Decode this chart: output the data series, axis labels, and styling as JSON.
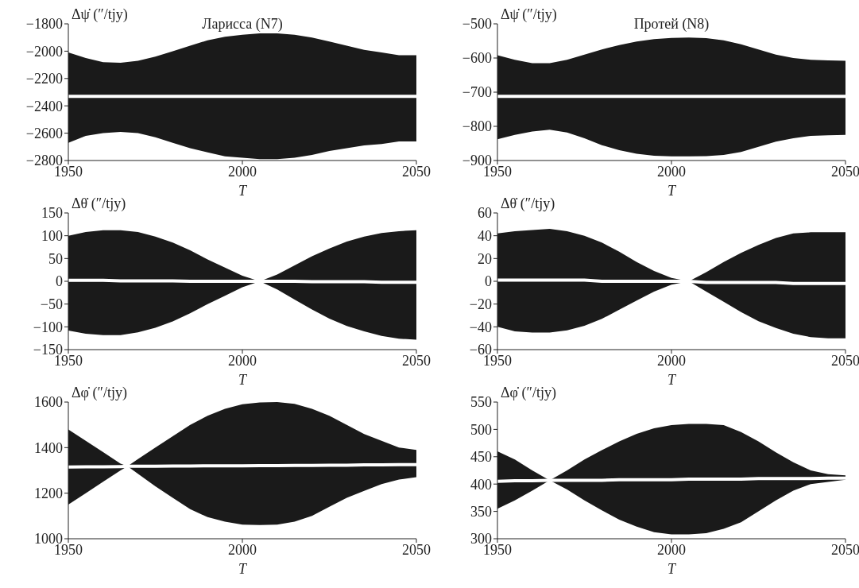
{
  "chart_data": [
    {
      "type": "line",
      "title": "Ларисса (N7)",
      "ylabel": "Δψ̇ (″/tjy)",
      "xlabel": "T",
      "marker": "none",
      "xlim": [
        1950,
        2050
      ],
      "xticks": [
        1950,
        2000,
        2050
      ],
      "ylim": [
        -2800,
        -1800
      ],
      "yticks": [
        -2800,
        -2600,
        -2400,
        -2200,
        -2000,
        -1800
      ],
      "x": [
        1950,
        1955,
        1960,
        1965,
        1970,
        1975,
        1980,
        1985,
        1990,
        1995,
        2000,
        2005,
        2010,
        2015,
        2020,
        2025,
        2030,
        2035,
        2040,
        2045,
        2050
      ],
      "series": [
        {
          "color": "#ffffff",
          "values": [
            -2330,
            -2330,
            -2330,
            -2330,
            -2330,
            -2330,
            -2330,
            -2330,
            -2330,
            -2330,
            -2330,
            -2330,
            -2330,
            -2330,
            -2330,
            -2330,
            -2330,
            -2330,
            -2330,
            -2330,
            -2330
          ],
          "upper": [
            -2010,
            -2050,
            -2080,
            -2085,
            -2070,
            -2040,
            -2000,
            -1960,
            -1920,
            -1895,
            -1880,
            -1870,
            -1870,
            -1880,
            -1900,
            -1930,
            -1960,
            -1990,
            -2010,
            -2030,
            -2030
          ],
          "lower": [
            -2670,
            -2620,
            -2600,
            -2590,
            -2600,
            -2630,
            -2670,
            -2710,
            -2740,
            -2770,
            -2780,
            -2790,
            -2790,
            -2780,
            -2760,
            -2730,
            -2710,
            -2690,
            -2680,
            -2660,
            -2660
          ]
        }
      ]
    },
    {
      "type": "line",
      "title": "Протей (N8)",
      "ylabel": "Δψ̇ (″/tjy)",
      "xlabel": "T",
      "marker": "none",
      "xlim": [
        1950,
        2050
      ],
      "xticks": [
        1950,
        2000,
        2050
      ],
      "ylim": [
        -900,
        -500
      ],
      "yticks": [
        -900,
        -800,
        -700,
        -600,
        -500
      ],
      "x": [
        1950,
        1955,
        1960,
        1965,
        1970,
        1975,
        1980,
        1985,
        1990,
        1995,
        2000,
        2005,
        2010,
        2015,
        2020,
        2025,
        2030,
        2035,
        2040,
        2045,
        2050
      ],
      "series": [
        {
          "color": "#ffffff",
          "values": [
            -712,
            -712,
            -712,
            -712,
            -712,
            -712,
            -712,
            -712,
            -712,
            -712,
            -712,
            -712,
            -712,
            -712,
            -712,
            -712,
            -712,
            -712,
            -712,
            -712,
            -712
          ],
          "upper": [
            -592,
            -605,
            -615,
            -615,
            -605,
            -590,
            -575,
            -562,
            -552,
            -545,
            -541,
            -540,
            -542,
            -548,
            -560,
            -575,
            -590,
            -600,
            -605,
            -607,
            -608
          ],
          "lower": [
            -838,
            -825,
            -815,
            -810,
            -818,
            -835,
            -855,
            -870,
            -880,
            -886,
            -888,
            -888,
            -887,
            -884,
            -875,
            -860,
            -845,
            -835,
            -828,
            -826,
            -825
          ]
        }
      ]
    },
    {
      "type": "line",
      "ylabel": "Δθ̇ (″/tjy)",
      "xlabel": "T",
      "marker": "none",
      "xlim": [
        1950,
        2050
      ],
      "xticks": [
        1950,
        2000,
        2050
      ],
      "ylim": [
        -150,
        150
      ],
      "yticks": [
        -150,
        -100,
        -50,
        0,
        50,
        100,
        150
      ],
      "x": [
        1950,
        1955,
        1960,
        1965,
        1970,
        1975,
        1980,
        1985,
        1990,
        1995,
        2000,
        2005,
        2010,
        2015,
        2020,
        2025,
        2030,
        2035,
        2040,
        2045,
        2050
      ],
      "series": [
        {
          "color": "#ffffff",
          "values": [
            2,
            2,
            2,
            1,
            1,
            1,
            1,
            0,
            0,
            0,
            0,
            0,
            0,
            0,
            -1,
            -1,
            -1,
            -1,
            -2,
            -2,
            -2
          ],
          "upper": [
            100,
            108,
            112,
            112,
            108,
            98,
            85,
            68,
            48,
            30,
            12,
            0,
            15,
            35,
            55,
            72,
            87,
            98,
            106,
            110,
            112
          ],
          "lower": [
            -108,
            -115,
            -118,
            -118,
            -112,
            -102,
            -88,
            -70,
            -50,
            -32,
            -13,
            0,
            -18,
            -40,
            -62,
            -82,
            -98,
            -110,
            -120,
            -126,
            -128
          ]
        }
      ]
    },
    {
      "type": "line",
      "ylabel": "Δθ̇ (″/tjy)",
      "xlabel": "T",
      "marker": "none",
      "xlim": [
        1950,
        2050
      ],
      "xticks": [
        1950,
        2000,
        2050
      ],
      "ylim": [
        -60,
        60
      ],
      "yticks": [
        -60,
        -40,
        -20,
        0,
        20,
        40,
        60
      ],
      "x": [
        1950,
        1955,
        1960,
        1965,
        1970,
        1975,
        1980,
        1985,
        1990,
        1995,
        2000,
        2005,
        2010,
        2015,
        2020,
        2025,
        2030,
        2035,
        2040,
        2045,
        2050
      ],
      "series": [
        {
          "color": "#ffffff",
          "values": [
            1,
            1,
            1,
            1,
            1,
            1,
            0,
            0,
            0,
            0,
            0,
            0,
            -1,
            -1,
            -1,
            -1,
            -1,
            -2,
            -2,
            -2,
            -2
          ],
          "upper": [
            42,
            44,
            45,
            46,
            44,
            40,
            34,
            26,
            17,
            9,
            3,
            0,
            8,
            17,
            25,
            32,
            38,
            42,
            43,
            43,
            43
          ],
          "lower": [
            -40,
            -44,
            -45,
            -45,
            -43,
            -39,
            -33,
            -25,
            -17,
            -9,
            -3,
            0,
            -9,
            -18,
            -27,
            -35,
            -41,
            -46,
            -49,
            -50,
            -50
          ]
        }
      ]
    },
    {
      "type": "line",
      "ylabel": "Δφ̇ (″/tjy)",
      "xlabel": "T",
      "marker": "none",
      "xlim": [
        1950,
        2050
      ],
      "xticks": [
        1950,
        2000,
        2050
      ],
      "ylim": [
        1000,
        1600
      ],
      "yticks": [
        1000,
        1200,
        1400,
        1600
      ],
      "x": [
        1950,
        1955,
        1960,
        1965,
        1967,
        1970,
        1975,
        1980,
        1985,
        1990,
        1995,
        2000,
        2005,
        2010,
        2015,
        2020,
        2025,
        2030,
        2035,
        2040,
        2045,
        2050
      ],
      "series": [
        {
          "color": "#ffffff",
          "values": [
            1315,
            1316,
            1316,
            1317,
            1318,
            1318,
            1318,
            1319,
            1319,
            1320,
            1320,
            1320,
            1321,
            1321,
            1322,
            1322,
            1323,
            1323,
            1324,
            1324,
            1325,
            1325
          ],
          "upper": [
            1480,
            1430,
            1380,
            1330,
            1318,
            1350,
            1400,
            1450,
            1500,
            1540,
            1570,
            1590,
            1598,
            1600,
            1592,
            1570,
            1540,
            1500,
            1460,
            1430,
            1400,
            1390
          ],
          "lower": [
            1150,
            1200,
            1250,
            1300,
            1318,
            1285,
            1230,
            1180,
            1130,
            1095,
            1075,
            1062,
            1060,
            1062,
            1075,
            1100,
            1140,
            1180,
            1210,
            1240,
            1260,
            1270
          ]
        }
      ]
    },
    {
      "type": "line",
      "ylabel": "Δφ̇ (″/tjy)",
      "xlabel": "T",
      "marker": "none",
      "xlim": [
        1950,
        2050
      ],
      "xticks": [
        1950,
        2000,
        2050
      ],
      "ylim": [
        300,
        550
      ],
      "yticks": [
        300,
        350,
        400,
        450,
        500,
        550
      ],
      "x": [
        1950,
        1955,
        1960,
        1965,
        1970,
        1975,
        1980,
        1985,
        1990,
        1995,
        2000,
        2005,
        2010,
        2015,
        2020,
        2025,
        2030,
        2035,
        2040,
        2045,
        2050
      ],
      "series": [
        {
          "color": "#ffffff",
          "values": [
            405,
            406,
            406,
            407,
            407,
            407,
            407,
            408,
            408,
            408,
            408,
            409,
            409,
            409,
            409,
            410,
            410,
            410,
            410,
            411,
            411
          ],
          "upper": [
            460,
            445,
            425,
            407,
            425,
            445,
            462,
            478,
            492,
            502,
            508,
            510,
            510,
            508,
            495,
            478,
            458,
            440,
            425,
            418,
            416
          ],
          "lower": [
            355,
            370,
            388,
            407,
            390,
            370,
            352,
            335,
            322,
            312,
            308,
            308,
            310,
            318,
            330,
            350,
            370,
            388,
            400,
            404,
            408
          ]
        }
      ]
    }
  ]
}
